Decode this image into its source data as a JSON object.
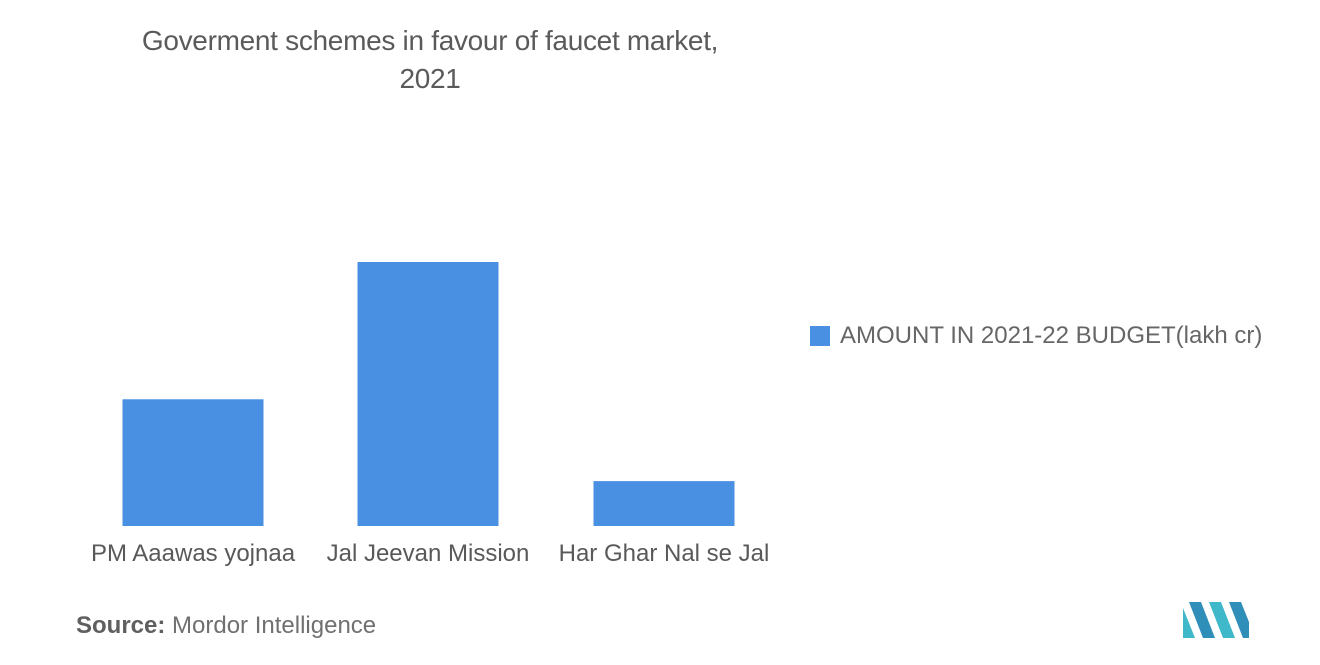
{
  "source": {
    "label": "Source:",
    "value": "Mordor Intelligence"
  },
  "chart_data": {
    "type": "bar",
    "title_line1": "Goverment schemes in favour of faucet market,",
    "title_line2": "2021",
    "categories": [
      "PM Aaawas yojnaa",
      "Jal Jeevan Mission",
      "Har Ghar Nal se Jal"
    ],
    "series": [
      {
        "name": "AMOUNT IN 2021-22 BUDGET(lakh cr)",
        "values": [
          0.48,
          1.0,
          0.17
        ],
        "color": "#4a90e2"
      }
    ],
    "ylim": [
      0,
      1.0
    ],
    "grid": false,
    "legend_position": "right"
  }
}
